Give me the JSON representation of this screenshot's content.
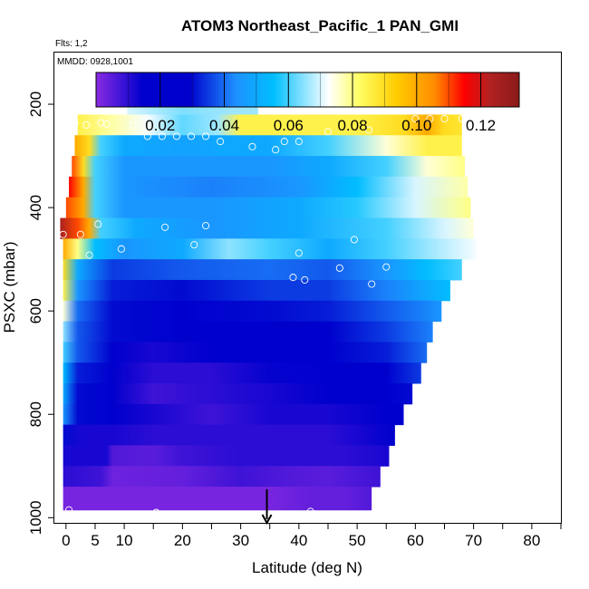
{
  "chart_data": {
    "type": "heatmap",
    "title": "ATOM3 Northeast_Pacific_1 PAN_GMI",
    "subtitle_flights": "Flts: 1,2",
    "subtitle_dates": "MMDD: 0928,1001",
    "xlabel": "Latitude (deg N)",
    "ylabel": "PSXC (mbar)",
    "xlim": [
      -2,
      85
    ],
    "ylim": [
      1010,
      100
    ],
    "xticks": [
      0,
      5,
      10,
      20,
      30,
      40,
      50,
      60,
      70,
      80
    ],
    "xticks_minor": [
      15,
      25,
      35,
      45,
      55,
      65,
      75,
      85
    ],
    "yticks": [
      200,
      400,
      600,
      800,
      1000
    ],
    "colorbar": {
      "range": [
        0.0,
        0.132
      ],
      "ticks": [
        0.02,
        0.04,
        0.06,
        0.08,
        0.1,
        0.12
      ],
      "tick_labels": [
        "0.02",
        "0.04",
        "0.06",
        "0.08",
        "0.10",
        "0.12"
      ],
      "colors": [
        "#8a2be2",
        "#0000cd",
        "#0000cd",
        "#1e90ff",
        "#00bfff",
        "#ffffff",
        "#ffff66",
        "#ffcc00",
        "#ff8c00",
        "#ff0000",
        "#b22222",
        "#8b1a1a"
      ],
      "stops": [
        0.0,
        0.11,
        0.22,
        0.33,
        0.42,
        0.55,
        0.62,
        0.71,
        0.8,
        0.87,
        0.93,
        1.0
      ]
    },
    "layers": [
      {
        "p_top": 180,
        "p_bot": 220,
        "x_start": 10.5,
        "x_end": 33,
        "values": [
          [
            10.5,
            0.07
          ],
          [
            20,
            0.064
          ],
          [
            28,
            0.066
          ],
          [
            33,
            0.066
          ]
        ]
      },
      {
        "p_top": 220,
        "p_bot": 260,
        "x_start": 2,
        "x_end": 68,
        "values": [
          [
            2,
            0.085
          ],
          [
            8,
            0.078
          ],
          [
            14,
            0.072
          ],
          [
            20,
            0.062
          ],
          [
            26,
            0.066
          ],
          [
            30,
            0.085
          ],
          [
            40,
            0.085
          ],
          [
            50,
            0.085
          ],
          [
            58,
            0.09
          ],
          [
            62,
            0.1
          ],
          [
            65,
            0.09
          ],
          [
            68,
            0.088
          ]
        ]
      },
      {
        "p_top": 260,
        "p_bot": 300,
        "x_start": 1.5,
        "x_end": 68,
        "values": [
          [
            1.5,
            0.1
          ],
          [
            4,
            0.09
          ],
          [
            6,
            0.06
          ],
          [
            10,
            0.05
          ],
          [
            20,
            0.048
          ],
          [
            28,
            0.05
          ],
          [
            35,
            0.05
          ],
          [
            45,
            0.06
          ],
          [
            55,
            0.075
          ],
          [
            62,
            0.085
          ],
          [
            68,
            0.085
          ]
        ]
      },
      {
        "p_top": 300,
        "p_bot": 340,
        "x_start": 1,
        "x_end": 68.5,
        "values": [
          [
            1,
            0.11
          ],
          [
            3,
            0.09
          ],
          [
            5,
            0.06
          ],
          [
            10,
            0.045
          ],
          [
            25,
            0.045
          ],
          [
            35,
            0.045
          ],
          [
            45,
            0.05
          ],
          [
            55,
            0.06
          ],
          [
            62,
            0.075
          ],
          [
            68.5,
            0.08
          ]
        ]
      },
      {
        "p_top": 340,
        "p_bot": 380,
        "x_start": 0.5,
        "x_end": 69,
        "values": [
          [
            0.5,
            0.115
          ],
          [
            3,
            0.1
          ],
          [
            5,
            0.06
          ],
          [
            10,
            0.045
          ],
          [
            25,
            0.042
          ],
          [
            40,
            0.045
          ],
          [
            50,
            0.055
          ],
          [
            60,
            0.07
          ],
          [
            69,
            0.078
          ]
        ]
      },
      {
        "p_top": 380,
        "p_bot": 420,
        "x_start": 0,
        "x_end": 69.5,
        "values": [
          [
            0,
            0.11
          ],
          [
            3,
            0.1
          ],
          [
            5,
            0.06
          ],
          [
            10,
            0.045
          ],
          [
            25,
            0.045
          ],
          [
            40,
            0.05
          ],
          [
            50,
            0.058
          ],
          [
            60,
            0.07
          ],
          [
            69.5,
            0.08
          ]
        ]
      },
      {
        "p_top": 420,
        "p_bot": 460,
        "x_start": -1,
        "x_end": 70,
        "values": [
          [
            -1,
            0.125
          ],
          [
            2,
            0.11
          ],
          [
            4,
            0.1
          ],
          [
            6,
            0.06
          ],
          [
            12,
            0.05
          ],
          [
            25,
            0.045
          ],
          [
            40,
            0.05
          ],
          [
            55,
            0.06
          ],
          [
            65,
            0.07
          ],
          [
            70,
            0.075
          ]
        ]
      },
      {
        "p_top": 460,
        "p_bot": 500,
        "x_start": -0.5,
        "x_end": 70.5,
        "values": [
          [
            -0.5,
            0.1
          ],
          [
            2,
            0.08
          ],
          [
            5,
            0.055
          ],
          [
            10,
            0.045
          ],
          [
            20,
            0.05
          ],
          [
            28,
            0.065
          ],
          [
            35,
            0.06
          ],
          [
            45,
            0.05
          ],
          [
            55,
            0.06
          ],
          [
            65,
            0.068
          ],
          [
            70.5,
            0.072
          ]
        ]
      },
      {
        "p_top": 500,
        "p_bot": 540,
        "x_start": -0.5,
        "x_end": 68,
        "values": [
          [
            -0.5,
            0.09
          ],
          [
            2,
            0.05
          ],
          [
            8,
            0.035
          ],
          [
            20,
            0.038
          ],
          [
            35,
            0.04
          ],
          [
            45,
            0.038
          ],
          [
            55,
            0.045
          ],
          [
            62,
            0.055
          ],
          [
            68,
            0.06
          ]
        ]
      },
      {
        "p_top": 540,
        "p_bot": 580,
        "x_start": -0.5,
        "x_end": 66,
        "values": [
          [
            -0.5,
            0.085
          ],
          [
            2,
            0.045
          ],
          [
            8,
            0.032
          ],
          [
            20,
            0.03
          ],
          [
            35,
            0.035
          ],
          [
            45,
            0.035
          ],
          [
            55,
            0.042
          ],
          [
            62,
            0.05
          ],
          [
            66,
            0.055
          ]
        ]
      },
      {
        "p_top": 580,
        "p_bot": 620,
        "x_start": -0.5,
        "x_end": 64.5,
        "values": [
          [
            -0.5,
            0.075
          ],
          [
            2,
            0.04
          ],
          [
            8,
            0.03
          ],
          [
            20,
            0.025
          ],
          [
            35,
            0.03
          ],
          [
            45,
            0.032
          ],
          [
            55,
            0.038
          ],
          [
            64.5,
            0.045
          ]
        ]
      },
      {
        "p_top": 620,
        "p_bot": 660,
        "x_start": -0.5,
        "x_end": 63,
        "values": [
          [
            -0.5,
            0.065
          ],
          [
            2,
            0.038
          ],
          [
            8,
            0.03
          ],
          [
            20,
            0.02
          ],
          [
            35,
            0.025
          ],
          [
            45,
            0.028
          ],
          [
            55,
            0.035
          ],
          [
            63,
            0.042
          ]
        ]
      },
      {
        "p_top": 660,
        "p_bot": 700,
        "x_start": -0.5,
        "x_end": 62,
        "values": [
          [
            -0.5,
            0.06
          ],
          [
            2,
            0.038
          ],
          [
            8,
            0.025
          ],
          [
            15,
            0.012
          ],
          [
            25,
            0.015
          ],
          [
            35,
            0.018
          ],
          [
            45,
            0.025
          ],
          [
            55,
            0.032
          ],
          [
            62,
            0.04
          ]
        ]
      },
      {
        "p_top": 700,
        "p_bot": 740,
        "x_start": -0.5,
        "x_end": 61,
        "values": [
          [
            -0.5,
            0.055
          ],
          [
            2,
            0.032
          ],
          [
            8,
            0.02
          ],
          [
            15,
            0.01
          ],
          [
            25,
            0.01
          ],
          [
            35,
            0.014
          ],
          [
            45,
            0.02
          ],
          [
            55,
            0.028
          ],
          [
            61,
            0.035
          ]
        ]
      },
      {
        "p_top": 740,
        "p_bot": 780,
        "x_start": -0.5,
        "x_end": 59.5,
        "values": [
          [
            -0.5,
            0.05
          ],
          [
            2,
            0.03
          ],
          [
            8,
            0.018
          ],
          [
            15,
            0.008
          ],
          [
            25,
            0.01
          ],
          [
            35,
            0.012
          ],
          [
            45,
            0.018
          ],
          [
            55,
            0.025
          ],
          [
            59.5,
            0.03
          ]
        ]
      },
      {
        "p_top": 780,
        "p_bot": 820,
        "x_start": -0.5,
        "x_end": 58,
        "values": [
          [
            -0.5,
            0.045
          ],
          [
            2,
            0.03
          ],
          [
            8,
            0.015
          ],
          [
            15,
            0.012
          ],
          [
            25,
            0.008
          ],
          [
            35,
            0.012
          ],
          [
            45,
            0.012
          ],
          [
            55,
            0.018
          ],
          [
            58,
            0.022
          ]
        ]
      },
      {
        "p_top": 820,
        "p_bot": 860,
        "x_start": -0.5,
        "x_end": 56.5,
        "values": [
          [
            -0.5,
            0.03
          ],
          [
            3,
            0.012
          ],
          [
            8,
            0.012
          ],
          [
            15,
            0.01
          ],
          [
            25,
            0.01
          ],
          [
            35,
            0.01
          ],
          [
            45,
            0.01
          ],
          [
            56.5,
            0.015
          ]
        ]
      },
      {
        "p_top": 860,
        "p_bot": 900,
        "x_start": -0.5,
        "x_end": 55.5,
        "values": [
          [
            -0.5,
            0.012
          ],
          [
            7,
            0.012
          ],
          [
            8,
            0.006
          ],
          [
            15,
            0.005
          ],
          [
            20,
            0.008
          ],
          [
            30,
            0.01
          ],
          [
            40,
            0.01
          ],
          [
            48,
            0.01
          ],
          [
            55.5,
            0.012
          ]
        ]
      },
      {
        "p_top": 900,
        "p_bot": 940,
        "x_start": -0.5,
        "x_end": 54,
        "values": [
          [
            -0.5,
            0.01
          ],
          [
            6,
            0.008
          ],
          [
            8,
            0.003
          ],
          [
            20,
            0.004
          ],
          [
            30,
            0.008
          ],
          [
            38,
            0.006
          ],
          [
            45,
            0.005
          ],
          [
            54,
            0.008
          ]
        ]
      },
      {
        "p_top": 940,
        "p_bot": 985,
        "x_start": -0.5,
        "x_end": 52.5,
        "values": [
          [
            -0.5,
            0.002
          ],
          [
            20,
            0.002
          ],
          [
            35,
            0.002
          ],
          [
            42,
            0.004
          ],
          [
            48,
            0.004
          ],
          [
            52.5,
            0.006
          ]
        ]
      }
    ],
    "observations": [
      [
        19.5,
        198
      ],
      [
        26.5,
        188
      ],
      [
        1.5,
        236
      ],
      [
        3.5,
        240
      ],
      [
        6,
        236
      ],
      [
        7,
        238
      ],
      [
        11.5,
        240
      ],
      [
        14,
        262
      ],
      [
        16.5,
        262
      ],
      [
        19,
        262
      ],
      [
        21.5,
        262
      ],
      [
        24,
        262
      ],
      [
        26.5,
        272
      ],
      [
        32,
        282
      ],
      [
        36,
        288
      ],
      [
        37.5,
        272
      ],
      [
        40,
        272
      ],
      [
        45,
        253
      ],
      [
        52,
        250
      ],
      [
        60,
        228
      ],
      [
        62.5,
        228
      ],
      [
        65,
        228
      ],
      [
        68,
        228
      ],
      [
        5.5,
        432
      ],
      [
        17,
        438
      ],
      [
        24,
        435
      ],
      [
        -0.5,
        452
      ],
      [
        2.5,
        452
      ],
      [
        9.5,
        480
      ],
      [
        22,
        472
      ],
      [
        4,
        492
      ],
      [
        40,
        488
      ],
      [
        41,
        540
      ],
      [
        39,
        535
      ],
      [
        47,
        517
      ],
      [
        49.5,
        462
      ],
      [
        52.5,
        548
      ],
      [
        55,
        515
      ],
      [
        0.5,
        985
      ],
      [
        -0.5,
        995
      ],
      [
        6,
        995
      ],
      [
        15.5,
        990
      ],
      [
        23,
        995
      ],
      [
        40,
        1000
      ],
      [
        42,
        988
      ],
      [
        48,
        1003
      ],
      [
        53.5,
        988
      ]
    ],
    "arrow": {
      "x": 34.5,
      "p_from": 945,
      "p_to": 1010
    }
  }
}
